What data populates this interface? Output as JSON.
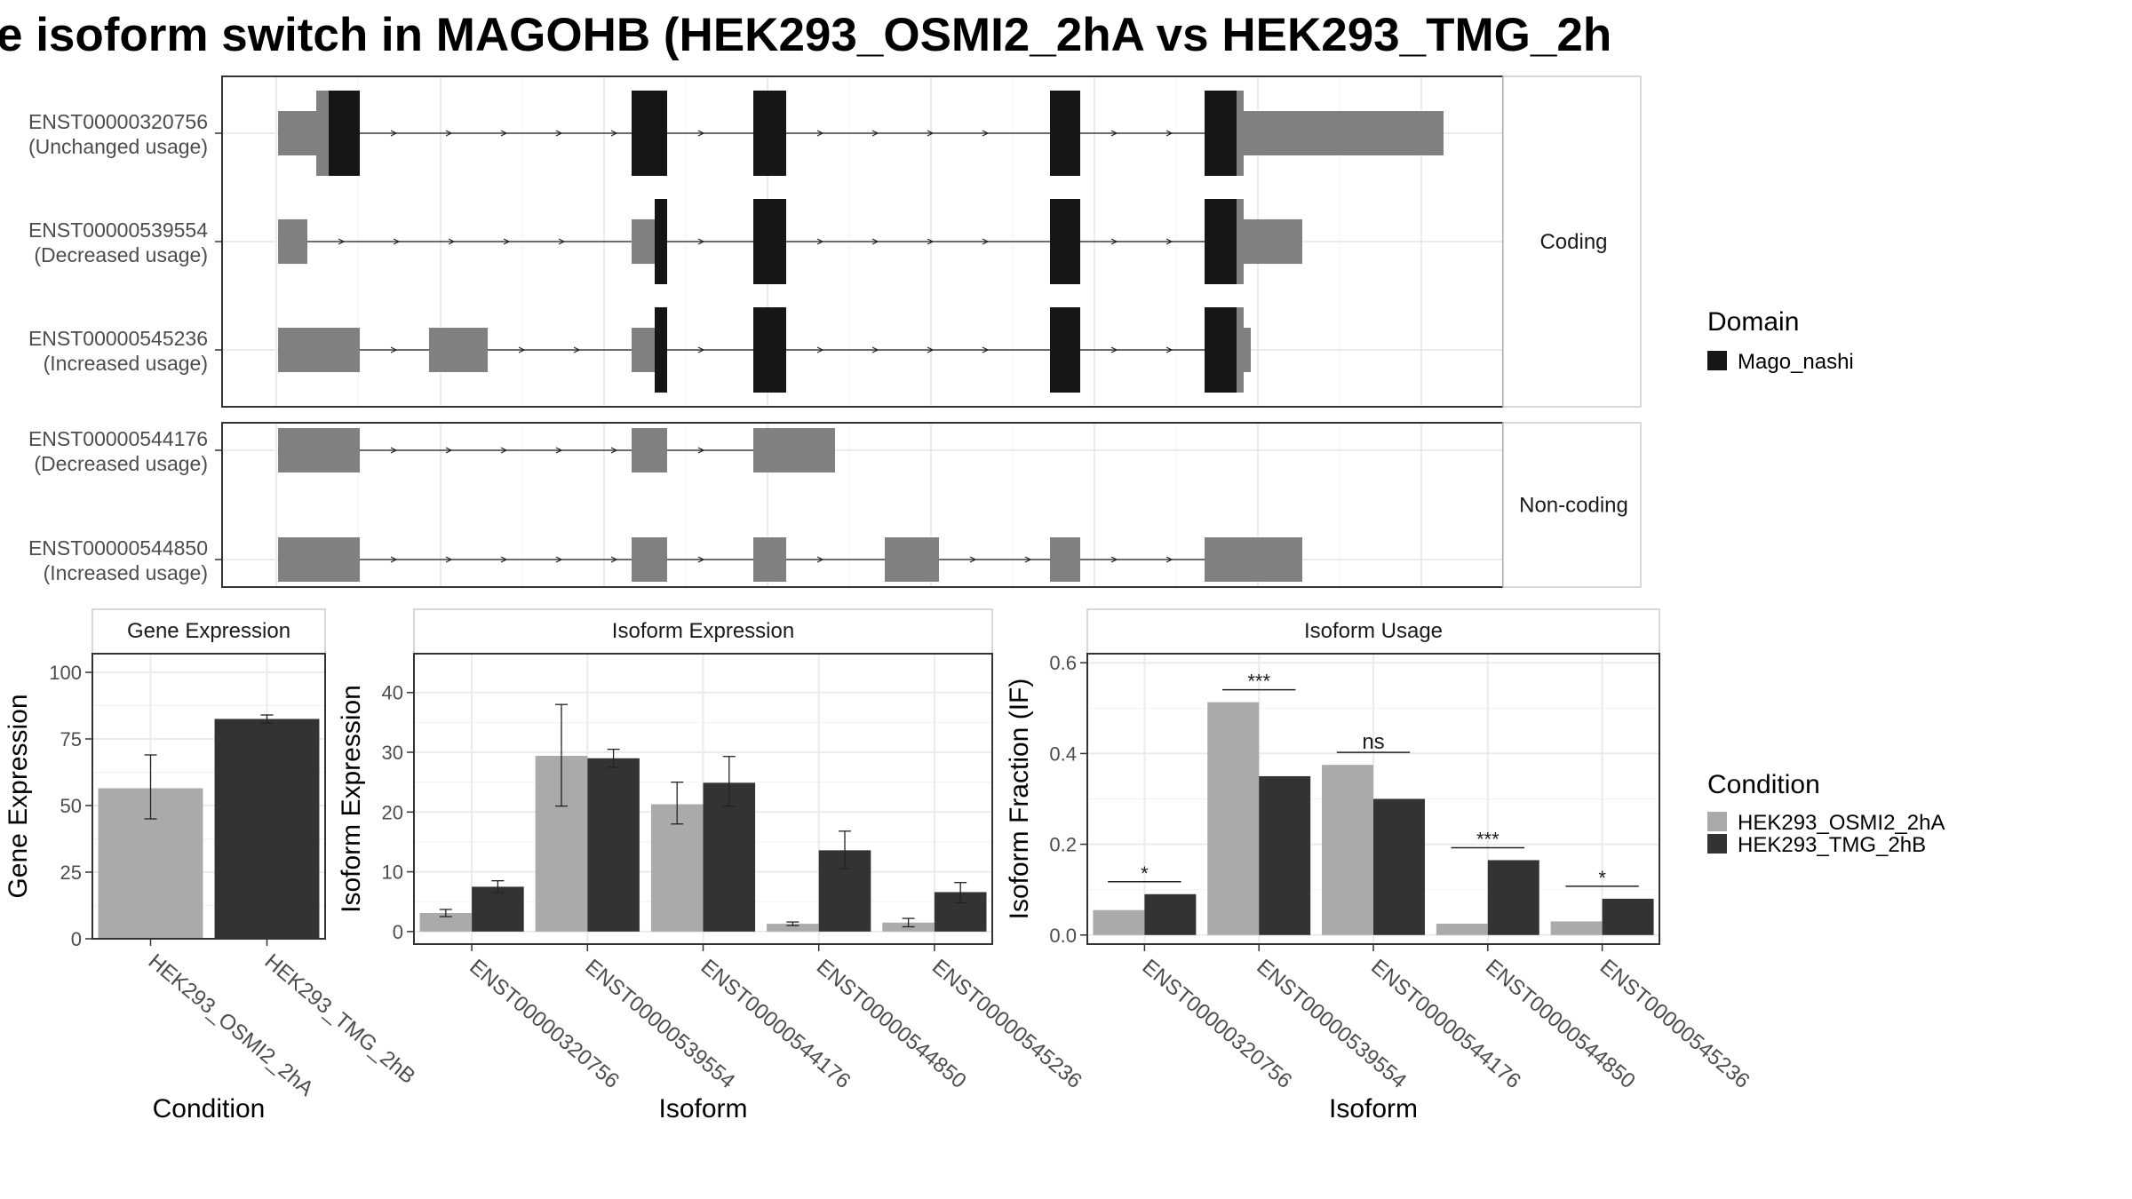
{
  "title": "e isoform switch in MAGOHB (HEK293_OSMI2_2hA vs HEK293_TMG_2h",
  "colors": {
    "condition_a": "#aaaaaa",
    "condition_b": "#333333",
    "exon_utr": "#808080",
    "domain": "#161616",
    "grid": "#ebebeb",
    "frame": "#333333",
    "strip_border": "#cccccc"
  },
  "legends": {
    "domain": {
      "title": "Domain",
      "items": [
        {
          "label": "Mago_nashi"
        }
      ]
    },
    "condition": {
      "title": "Condition",
      "items": [
        {
          "label": "HEK293_OSMI2_2hA"
        },
        {
          "label": "HEK293_TMG_2hB"
        }
      ]
    }
  },
  "chart_data": [
    {
      "type": "table",
      "name": "transcript-structure",
      "groups": [
        {
          "label": "Coding",
          "transcripts": [
            {
              "id": "ENST00000320756",
              "usage": "(Unchanged usage)"
            },
            {
              "id": "ENST00000539554",
              "usage": "(Decreased usage)"
            },
            {
              "id": "ENST00000545236",
              "usage": "(Increased usage)"
            }
          ]
        },
        {
          "label": "Non-coding",
          "transcripts": [
            {
              "id": "ENST00000544176",
              "usage": "(Decreased usage)"
            },
            {
              "id": "ENST00000544850",
              "usage": "(Increased usage)"
            }
          ]
        }
      ]
    },
    {
      "type": "bar",
      "title": "Gene Expression",
      "xlabel": "Condition",
      "ylabel": "Gene Expression",
      "categories": [
        "HEK293_OSMI2_2hA",
        "HEK293_TMG_2hB"
      ],
      "values": [
        56.5,
        82.5
      ],
      "error_low": [
        45,
        81
      ],
      "error_high": [
        69,
        84
      ],
      "ylim": [
        0,
        107
      ],
      "yticks": [
        0,
        25,
        50,
        75,
        100
      ]
    },
    {
      "type": "bar",
      "title": "Isoform Expression",
      "xlabel": "Isoform",
      "ylabel": "Isoform Expression",
      "categories": [
        "ENST00000320756",
        "ENST00000539554",
        "ENST00000544176",
        "ENST00000544850",
        "ENST00000545236"
      ],
      "series": [
        {
          "name": "HEK293_OSMI2_2hA",
          "values": [
            3.1,
            29.4,
            21.3,
            1.3,
            1.5
          ],
          "error_low": [
            2.5,
            21,
            18,
            1.0,
            0.8
          ],
          "error_high": [
            3.7,
            38,
            25,
            1.6,
            2.2
          ]
        },
        {
          "name": "HEK293_TMG_2hB",
          "values": [
            7.5,
            29.0,
            24.9,
            13.6,
            6.6
          ],
          "error_low": [
            6.5,
            27.5,
            21,
            10.5,
            4.8
          ],
          "error_high": [
            8.5,
            30.5,
            29.3,
            16.8,
            8.2
          ]
        }
      ],
      "ylim": [
        -2.1,
        46.5
      ],
      "yticks": [
        0,
        10,
        20,
        30,
        40
      ]
    },
    {
      "type": "bar",
      "title": "Isoform Usage",
      "xlabel": "Isoform",
      "ylabel": "Isoform Fraction (IF)",
      "categories": [
        "ENST00000320756",
        "ENST00000539554",
        "ENST00000544176",
        "ENST00000544850",
        "ENST00000545236"
      ],
      "series": [
        {
          "name": "HEK293_OSMI2_2hA",
          "values": [
            0.055,
            0.513,
            0.375,
            0.025,
            0.03
          ]
        },
        {
          "name": "HEK293_TMG_2hB",
          "values": [
            0.09,
            0.35,
            0.3,
            0.165,
            0.08
          ]
        }
      ],
      "significance": [
        "*",
        "***",
        "ns",
        "***",
        "*"
      ],
      "ylim": [
        -0.02,
        0.62
      ],
      "yticks": [
        0.0,
        0.2,
        0.4,
        0.6
      ],
      "ytick_labels": [
        "0.0",
        "0.2",
        "0.4",
        "0.6"
      ]
    }
  ]
}
